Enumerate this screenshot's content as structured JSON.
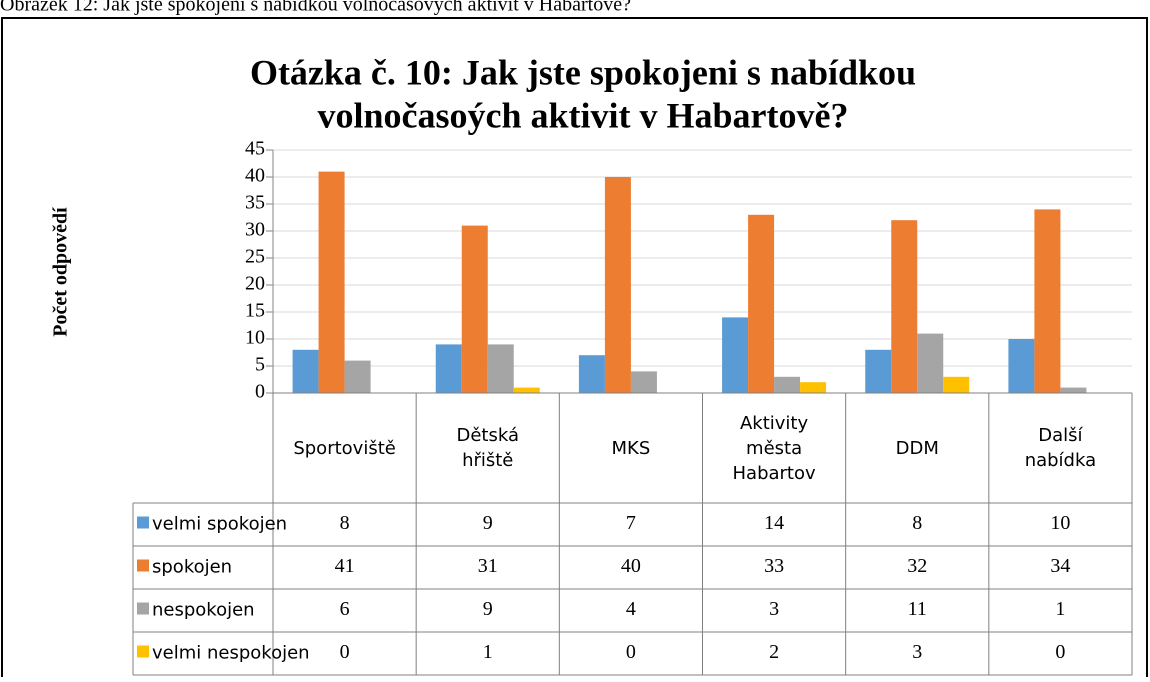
{
  "caption": "Obrázek 12: Jak jste spokojeni s nabídkou volnočasových aktivit v Habartově?",
  "chart_data": {
    "type": "bar",
    "title": [
      "Otázka č. 10: Jak jste spokojeni s nabídkou",
      "volnočasoých aktivit v Habartově?"
    ],
    "y_label": "Počet odpovědí",
    "categories": [
      "Sportoviště",
      "Dětská hřiště",
      "MKS",
      "Aktivity města Habartov",
      "DDM",
      "Další nabídka"
    ],
    "series": [
      {
        "name": "velmi spokojen",
        "color": "#5b9bd5",
        "values": [
          8,
          9,
          7,
          14,
          8,
          10
        ]
      },
      {
        "name": "spokojen",
        "color": "#ed7d31",
        "values": [
          41,
          31,
          40,
          33,
          32,
          34
        ]
      },
      {
        "name": "nespokojen",
        "color": "#a5a5a5",
        "values": [
          6,
          9,
          4,
          3,
          11,
          1
        ]
      },
      {
        "name": "velmi nespokojen",
        "color": "#ffc000",
        "values": [
          0,
          1,
          0,
          2,
          3,
          0
        ]
      }
    ],
    "ylim": [
      0,
      45
    ],
    "yticks": [
      0,
      5,
      10,
      15,
      20,
      25,
      30,
      35,
      40,
      45
    ],
    "grid": true
  }
}
